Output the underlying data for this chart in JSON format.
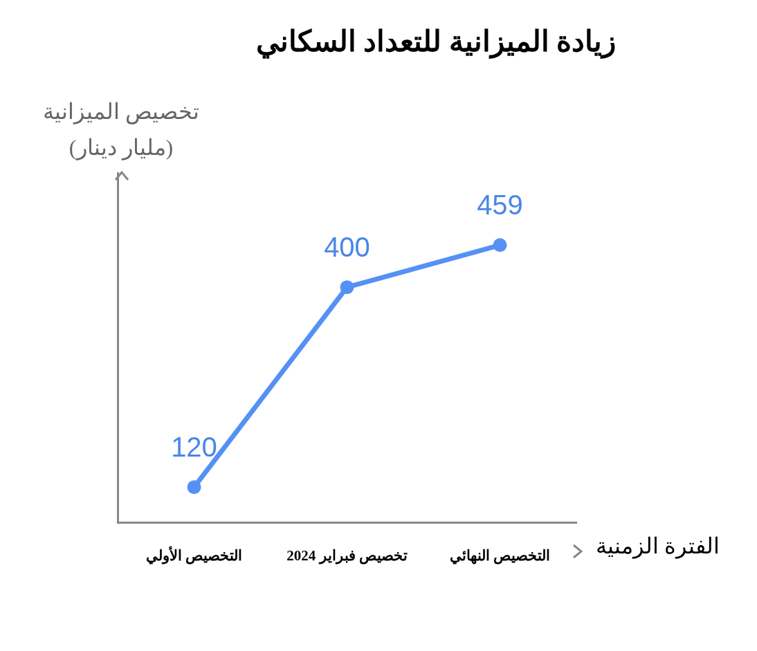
{
  "chart_data": {
    "type": "line",
    "title": "زيادة الميزانية للتعداد السكاني",
    "xlabel": "الفترة الزمنية",
    "ylabel": "تخصيص الميزانية (مليار دينار)",
    "categories": [
      "التخصيص الأولي",
      "تخصيص فبراير 2024",
      "التخصيص النهائي"
    ],
    "series": [
      {
        "color": "#5591f5",
        "values": [
          120,
          400,
          459
        ]
      }
    ],
    "ylim": [
      70,
      560
    ],
    "data_labels": true,
    "tick_labels": "x",
    "marker": "circle",
    "line_style": "solid"
  }
}
